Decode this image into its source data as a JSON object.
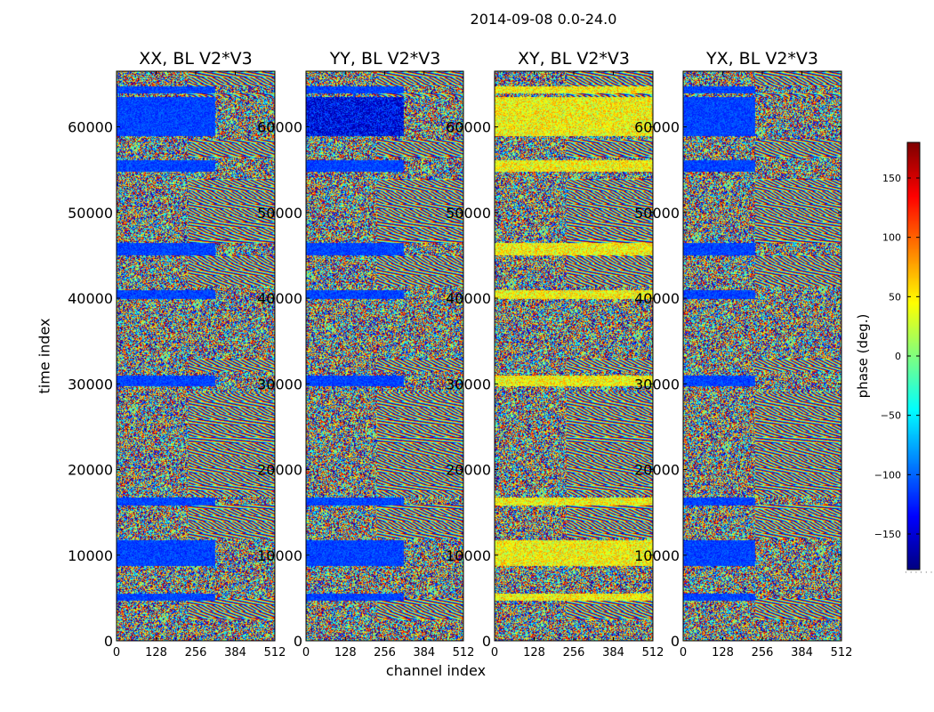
{
  "chart_data": {
    "type": "heatmap",
    "title": "2014-09-08 0.0-24.0",
    "xlabel": "channel index",
    "ylabel": "time index",
    "colorbar_label": "phase (deg.)",
    "colorbar_ticks": [
      -150,
      -100,
      -50,
      0,
      50,
      100,
      150
    ],
    "colorbar_range": [
      -180,
      180
    ],
    "colormap": "jet",
    "xlim": [
      0,
      512
    ],
    "x_ticks": [
      0,
      128,
      256,
      384,
      512
    ],
    "ylim": [
      0,
      66500
    ],
    "y_ticks": [
      0,
      10000,
      20000,
      30000,
      40000,
      50000,
      60000
    ],
    "panels": [
      {
        "title": "XX, BL V2*V3"
      },
      {
        "title": "YY, BL V2*V3"
      },
      {
        "title": "XY, BL V2*V3"
      },
      {
        "title": "YX, BL V2*V3"
      }
    ]
  }
}
